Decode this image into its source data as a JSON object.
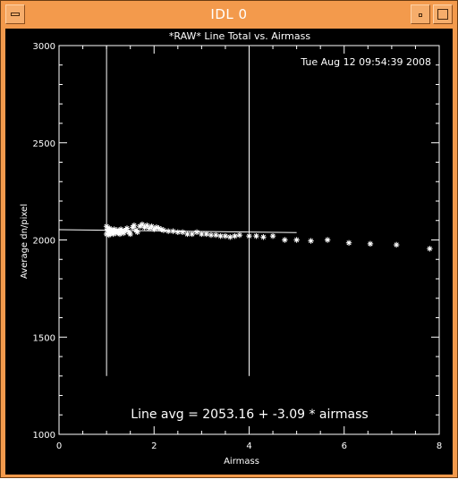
{
  "window": {
    "title": "IDL 0",
    "menu_icon": "window-menu-icon",
    "minimize_icon": "minimize-icon",
    "maximize_icon": "maximize-icon"
  },
  "plot": {
    "timestamp": "Tue Aug 12 09:54:39 2008",
    "fit_label": "Line avg = 2053.16 + -3.09 * airmass"
  },
  "colors": {
    "titlebar": "#f39a4c",
    "plot_background": "#000000",
    "foreground": "#ffffff"
  },
  "chart_data": {
    "type": "scatter",
    "title": "*RAW* Line Total vs. Airmass",
    "xlabel": "Airmass",
    "ylabel": "Average dn/pixel",
    "xlim": [
      0,
      8
    ],
    "ylim": [
      1000,
      3000
    ],
    "x_ticks": [
      0,
      2,
      4,
      6,
      8
    ],
    "y_ticks": [
      1000,
      1500,
      2000,
      2500,
      3000
    ],
    "marker": "asterisk",
    "grid": false,
    "series": [
      {
        "x": [
          1.0,
          1.0,
          1.02,
          1.03,
          1.05,
          1.06,
          1.08,
          1.1,
          1.12,
          1.14,
          1.16,
          1.18,
          1.2,
          1.22,
          1.25,
          1.28,
          1.3,
          1.33,
          1.36,
          1.4,
          1.43,
          1.47,
          1.5,
          1.55,
          1.58,
          1.62,
          1.65,
          1.7,
          1.75,
          1.8,
          1.85,
          1.9,
          1.95,
          2.0,
          2.05,
          2.1,
          2.15,
          2.2,
          2.3,
          2.4,
          2.5,
          2.6,
          2.7,
          2.8,
          2.9,
          3.0,
          3.1,
          3.2,
          3.3,
          3.4,
          3.5,
          3.6,
          3.7,
          3.8,
          4.0,
          4.15,
          4.3,
          4.5,
          4.75,
          5.0,
          5.3,
          5.65,
          6.1,
          6.55,
          7.1,
          7.8
        ],
        "y": [
          2070,
          2030,
          2055,
          2045,
          2025,
          2060,
          2035,
          2050,
          2040,
          2030,
          2055,
          2045,
          2035,
          2050,
          2040,
          2030,
          2055,
          2045,
          2035,
          2050,
          2060,
          2040,
          2030,
          2065,
          2075,
          2050,
          2040,
          2070,
          2080,
          2065,
          2075,
          2060,
          2070,
          2055,
          2065,
          2060,
          2055,
          2050,
          2045,
          2045,
          2040,
          2040,
          2030,
          2030,
          2040,
          2030,
          2030,
          2025,
          2025,
          2020,
          2020,
          2015,
          2020,
          2025,
          2020,
          2020,
          2015,
          2020,
          2000,
          2000,
          1995,
          2000,
          1985,
          1980,
          1975,
          1955
        ]
      }
    ],
    "fit_line": {
      "x": [
        0,
        5
      ],
      "y": [
        2053.16,
        2037.71
      ]
    },
    "vertical_markers": [
      1,
      4
    ]
  }
}
